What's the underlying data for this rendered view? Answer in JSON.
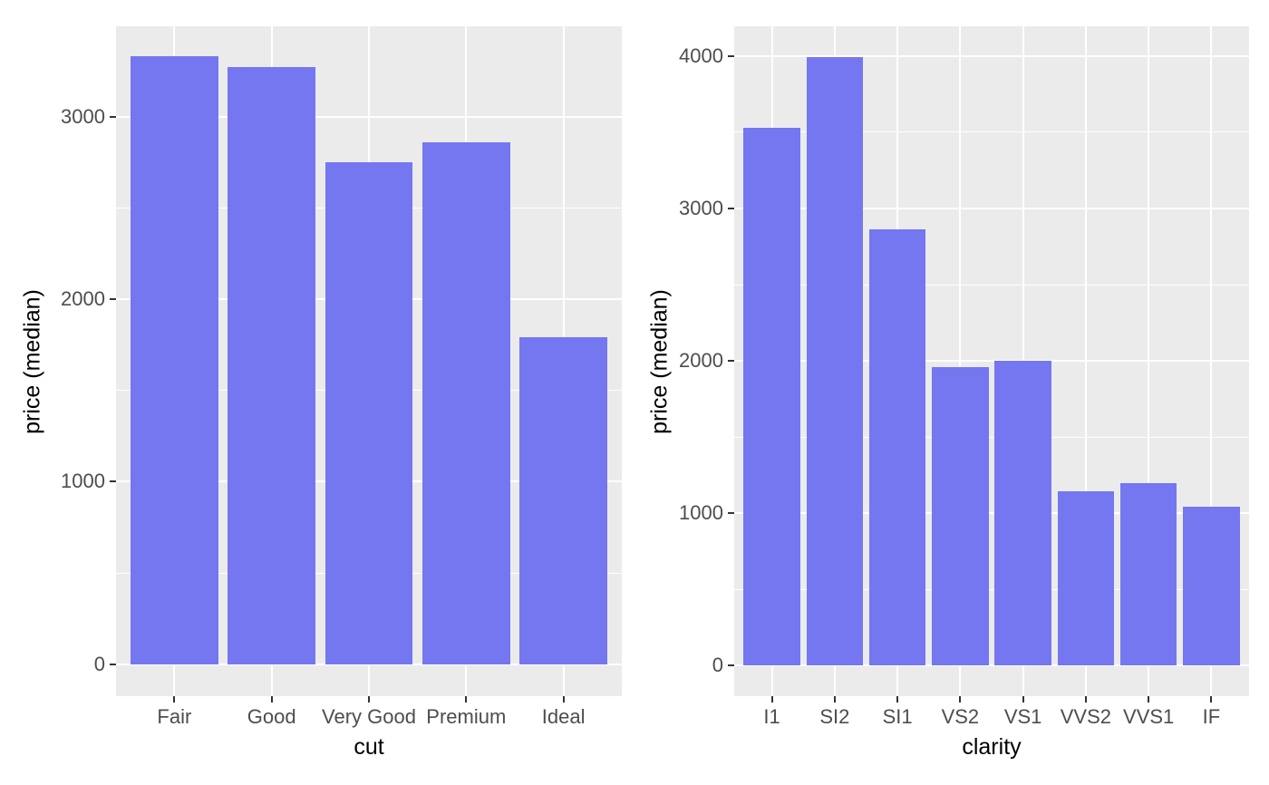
{
  "style": {
    "figure_bg": "#ffffff",
    "panel_bg": "#EBEBEB",
    "grid_color": "#FFFFFF",
    "bar_color": "#7477F0",
    "tick_text_color": "#4D4D4D",
    "title_text_color": "#000000",
    "tick_mark_color": "#333333"
  },
  "chart_data": [
    {
      "type": "bar",
      "title": "",
      "xlabel": "cut",
      "ylabel": "price (median)",
      "categories": [
        "Fair",
        "Good",
        "Very Good",
        "Premium",
        "Ideal"
      ],
      "values": [
        3330,
        3270,
        2750,
        2860,
        1790
      ],
      "yticks": [
        0,
        1000,
        2000,
        3000
      ],
      "ytick_labels": [
        "0",
        "1000",
        "2000",
        "3000"
      ],
      "ylim": [
        -175,
        3495
      ],
      "minor_grid_step": 500,
      "bar_rel_width": 0.9,
      "grid": "major-and-minor-horizontal-plus-category-vertical",
      "legend": "none"
    },
    {
      "type": "bar",
      "title": "",
      "xlabel": "clarity",
      "ylabel": "price (median)",
      "categories": [
        "I1",
        "SI2",
        "SI1",
        "VS2",
        "VS1",
        "VVS2",
        "VVS1",
        "IF"
      ],
      "values": [
        3530,
        3995,
        2860,
        1960,
        2000,
        1145,
        1200,
        1040
      ],
      "yticks": [
        0,
        1000,
        2000,
        3000,
        4000
      ],
      "ytick_labels": [
        "0",
        "1000",
        "2000",
        "3000",
        "4000"
      ],
      "ylim": [
        -200,
        4195
      ],
      "minor_grid_step": 500,
      "bar_rel_width": 0.9,
      "grid": "major-and-minor-horizontal-plus-category-vertical",
      "legend": "none"
    }
  ]
}
